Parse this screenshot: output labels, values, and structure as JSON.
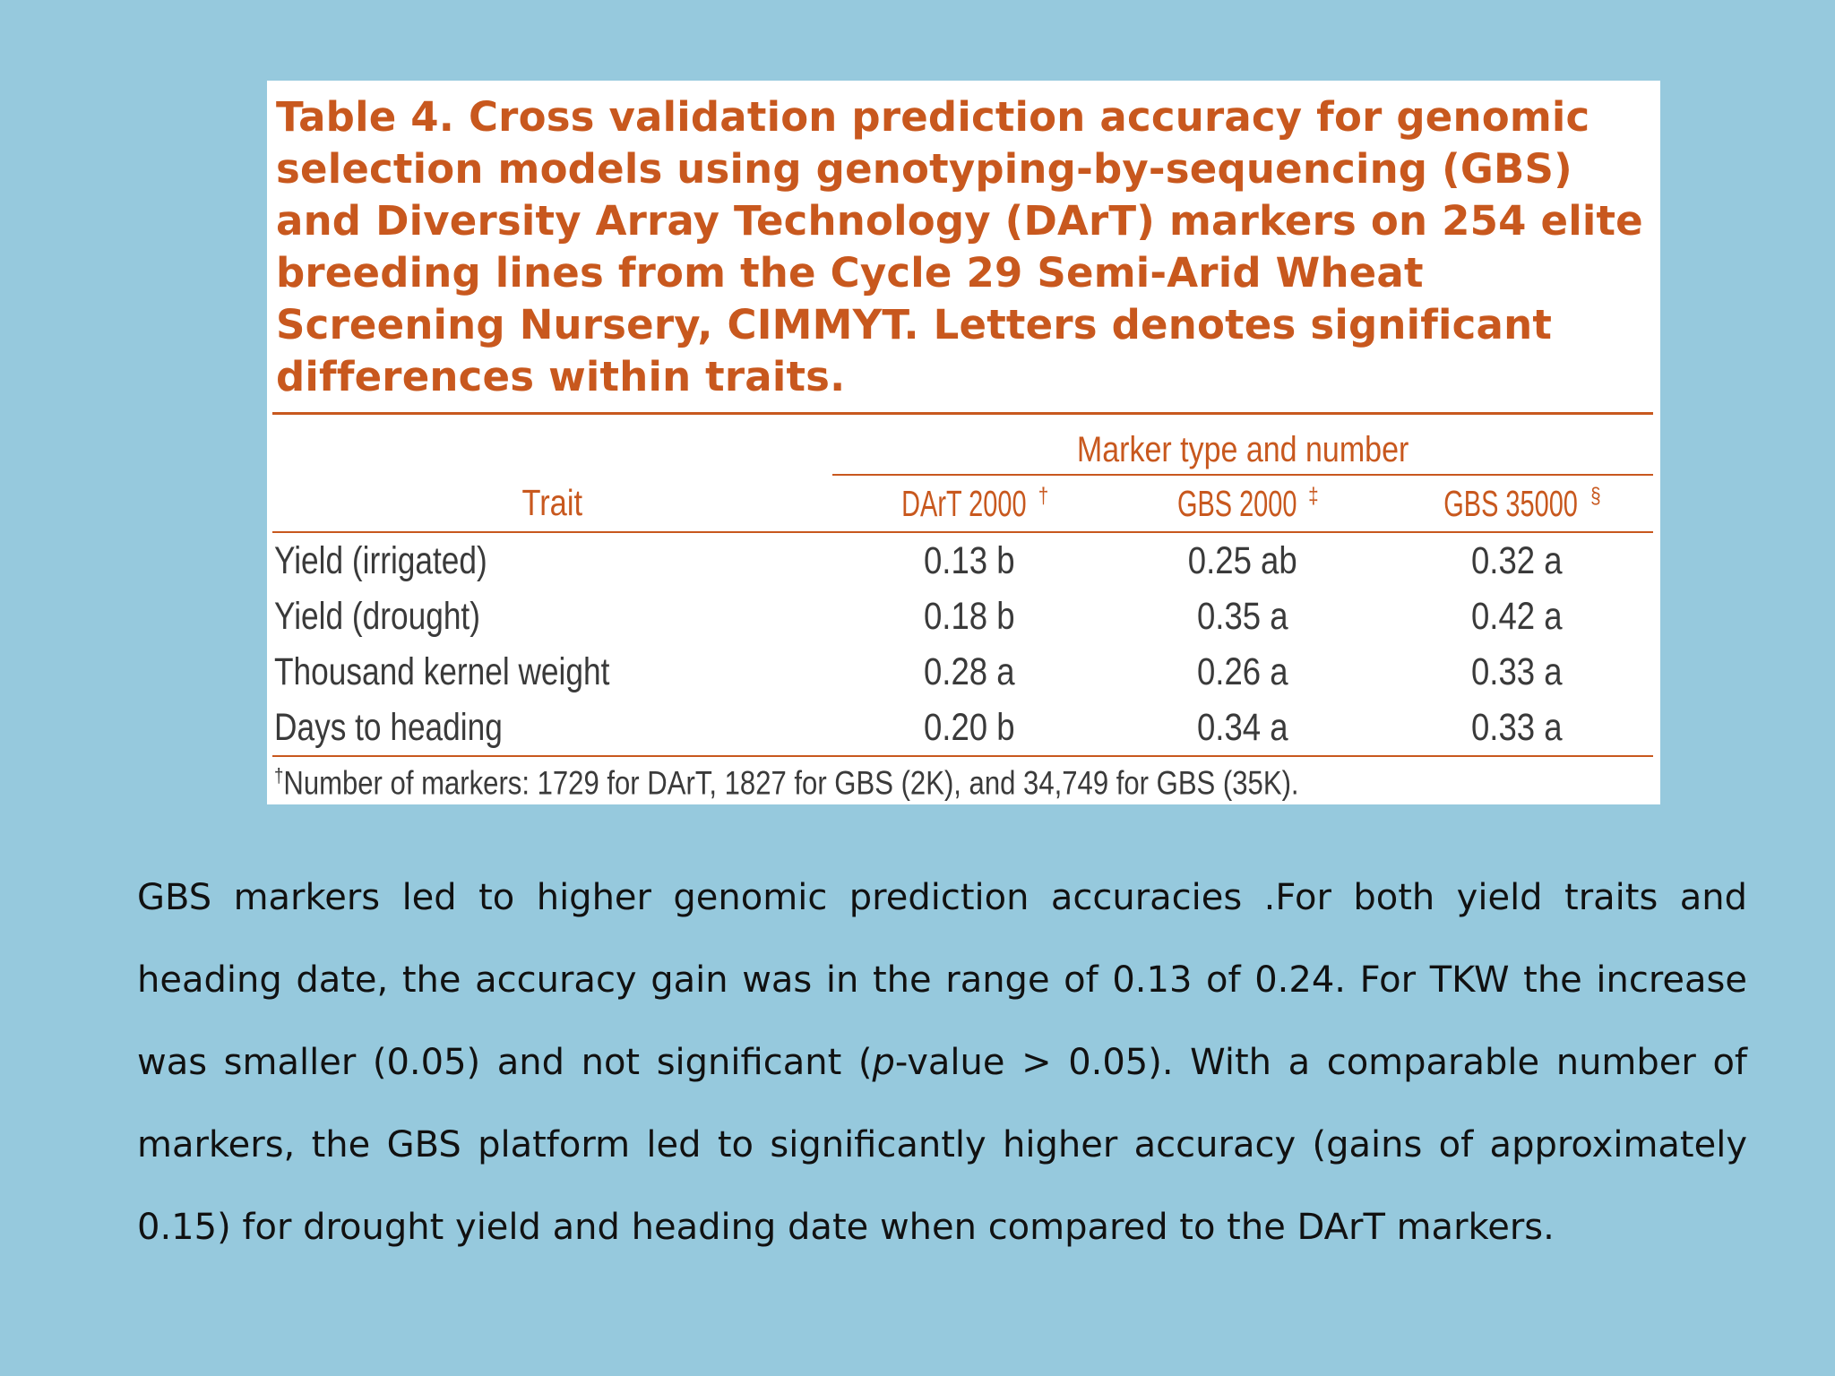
{
  "table": {
    "caption": "Table 4. Cross validation prediction accuracy for genomic selection models using genotyping-by-sequencing (GBS) and Diversity Array Technology (DArT) markers on 254 elite breeding lines from the Cycle 29 Semi-Arid Wheat Screening Nursery, CIMMYT. Letters denotes significant differences within traits.",
    "group_header": "Marker type and number",
    "trait_header": "Trait",
    "columns": [
      {
        "label": "DArT 2000",
        "mark": "†"
      },
      {
        "label": "GBS 2000",
        "mark": "‡"
      },
      {
        "label": "GBS 35000",
        "mark": "§"
      }
    ],
    "rows": [
      {
        "trait": "Yield (irrigated)",
        "values": [
          "0.13 b",
          "0.25 ab",
          "0.32 a"
        ]
      },
      {
        "trait": "Yield (drought)",
        "values": [
          "0.18 b",
          "0.35 a",
          "0.42 a"
        ]
      },
      {
        "trait": "Thousand kernel weight",
        "values": [
          "0.28 a",
          "0.26 a",
          "0.33 a"
        ]
      },
      {
        "trait": "Days to heading",
        "values": [
          "0.20 b",
          "0.34 a",
          "0.33 a"
        ]
      }
    ],
    "footnote_mark": "†",
    "footnote": "Number of markers: 1729 for DArT, 1827 for GBS (2K), and 34,749 for GBS (35K)."
  },
  "summary": {
    "part1": "GBS markers led to higher genomic prediction accuracies .For both yield traits and heading date, the accuracy gain was in the range of 0.13 of 0.24. For TKW the increase was smaller (0.05) and not significant (",
    "p_italic": "p",
    "part2": "-value > 0.05). With a comparable number of markers, the GBS platform led to significantly higher accuracy (gains of approximately 0.15) for drought yield and heading date when compared to the DArT markers."
  },
  "colors": {
    "background": "#96c9dd",
    "table_accent": "#c8581e",
    "table_text": "#3a3a3a"
  }
}
